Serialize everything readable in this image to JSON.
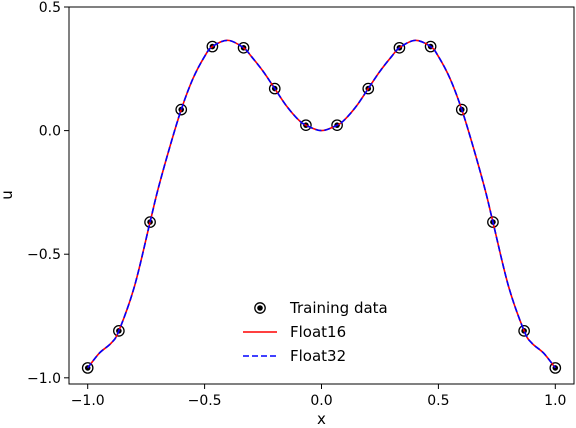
{
  "chart_data": {
    "type": "line",
    "title": "",
    "xlabel": "x",
    "ylabel": "u",
    "xlim": [
      -1.08,
      1.08
    ],
    "ylim": [
      -1.025,
      0.5
    ],
    "x_ticks": [
      -1.0,
      -0.5,
      0.0,
      0.5,
      1.0
    ],
    "x_tick_labels": [
      "−1.0",
      "−0.5",
      "0.0",
      "0.5",
      "1.0"
    ],
    "y_ticks": [
      -1.0,
      -0.5,
      0.0,
      0.5
    ],
    "y_tick_labels": [
      "−1.0",
      "−0.5",
      "0.0",
      "0.5"
    ],
    "grid": false,
    "legend_placement": "lower-center",
    "series": [
      {
        "name": "Training data",
        "kind": "scatter",
        "color": "#000000",
        "x": [
          -1.0,
          -0.8667,
          -0.7333,
          -0.6,
          -0.4667,
          -0.3333,
          -0.2,
          -0.0667,
          0.0667,
          0.2,
          0.3333,
          0.4667,
          0.6,
          0.7333,
          0.8667,
          1.0
        ],
        "y": [
          -0.96,
          -0.81,
          -0.37,
          0.085,
          0.34,
          0.335,
          0.17,
          0.022,
          0.022,
          0.17,
          0.335,
          0.34,
          0.085,
          -0.37,
          -0.81,
          -0.96
        ]
      },
      {
        "name": "Float16",
        "kind": "line",
        "color": "#ff0000",
        "style": "solid",
        "x": [
          -1.0,
          -0.95,
          -0.9,
          -0.8667,
          -0.8,
          -0.7333,
          -0.7,
          -0.65,
          -0.6,
          -0.55,
          -0.5,
          -0.4667,
          -0.4,
          -0.3333,
          -0.3,
          -0.25,
          -0.2,
          -0.15,
          -0.1,
          -0.0667,
          0.0,
          0.0667,
          0.1,
          0.15,
          0.2,
          0.25,
          0.3,
          0.3333,
          0.4,
          0.4667,
          0.5,
          0.55,
          0.6,
          0.65,
          0.7,
          0.7333,
          0.8,
          0.8667,
          0.9,
          0.95,
          1.0
        ],
        "y": [
          -0.96,
          -0.9,
          -0.86,
          -0.81,
          -0.63,
          -0.37,
          -0.24,
          -0.07,
          0.085,
          0.21,
          0.3,
          0.34,
          0.365,
          0.335,
          0.3,
          0.24,
          0.17,
          0.1,
          0.045,
          0.022,
          0.0,
          0.022,
          0.045,
          0.1,
          0.17,
          0.24,
          0.3,
          0.335,
          0.365,
          0.34,
          0.3,
          0.21,
          0.085,
          -0.07,
          -0.24,
          -0.37,
          -0.63,
          -0.81,
          -0.86,
          -0.9,
          -0.96
        ]
      },
      {
        "name": "Float32",
        "kind": "line",
        "color": "#0000ff",
        "style": "dashed",
        "x": [
          -1.0,
          -0.95,
          -0.9,
          -0.8667,
          -0.8,
          -0.7333,
          -0.7,
          -0.65,
          -0.6,
          -0.55,
          -0.5,
          -0.4667,
          -0.4,
          -0.3333,
          -0.3,
          -0.25,
          -0.2,
          -0.15,
          -0.1,
          -0.0667,
          0.0,
          0.0667,
          0.1,
          0.15,
          0.2,
          0.25,
          0.3,
          0.3333,
          0.4,
          0.4667,
          0.5,
          0.55,
          0.6,
          0.65,
          0.7,
          0.7333,
          0.8,
          0.8667,
          0.9,
          0.95,
          1.0
        ],
        "y": [
          -0.96,
          -0.9,
          -0.86,
          -0.81,
          -0.63,
          -0.37,
          -0.24,
          -0.07,
          0.085,
          0.21,
          0.3,
          0.34,
          0.365,
          0.335,
          0.3,
          0.24,
          0.17,
          0.1,
          0.045,
          0.022,
          0.0,
          0.022,
          0.045,
          0.1,
          0.17,
          0.24,
          0.3,
          0.335,
          0.365,
          0.34,
          0.3,
          0.21,
          0.085,
          -0.07,
          -0.24,
          -0.37,
          -0.63,
          -0.81,
          -0.86,
          -0.9,
          -0.96
        ]
      }
    ]
  }
}
